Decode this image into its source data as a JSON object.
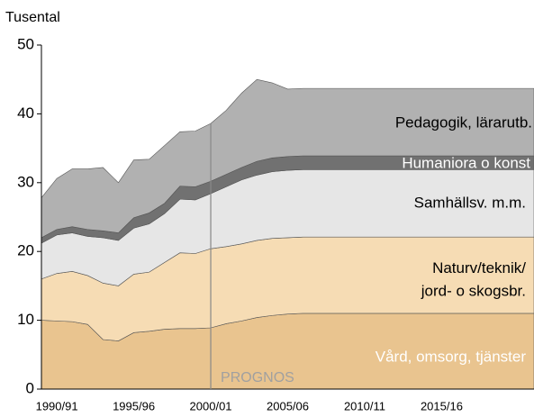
{
  "chart_data": {
    "type": "stacked_area",
    "y_axis_label": "Tusental",
    "categories": [
      null,
      "1990/91",
      null,
      null,
      null,
      null,
      "1995/96",
      null,
      null,
      null,
      null,
      "2000/01",
      null,
      null,
      null,
      null,
      "2005/06",
      null,
      null,
      null,
      null,
      "2010/11",
      null,
      null,
      null,
      null,
      "2015/16",
      null,
      null,
      null,
      null,
      null,
      null
    ],
    "series": [
      {
        "name": "Vård, omsorg, tjänster",
        "color": "#e9c48f",
        "values": [
          10.0,
          9.9,
          9.8,
          9.4,
          7.2,
          7.0,
          8.2,
          8.4,
          8.7,
          8.8,
          8.8,
          8.9,
          9.5,
          9.9,
          10.4,
          10.7,
          10.9,
          11.0,
          11.0,
          11.0,
          11.0,
          11.0,
          11.0,
          11.0,
          11.0,
          11.0,
          11.0,
          11.0,
          11.0,
          11.0,
          11.0,
          11.0,
          11.0
        ]
      },
      {
        "name": "Naturv/teknik/\njord- o skogsbr.",
        "color": "#f6dcb4",
        "values": [
          6.0,
          6.9,
          7.3,
          7.1,
          8.2,
          8.0,
          8.5,
          8.6,
          9.7,
          11.0,
          10.9,
          11.5,
          11.2,
          11.2,
          11.2,
          11.2,
          11.1,
          11.1,
          11.1,
          11.1,
          11.1,
          11.1,
          11.1,
          11.1,
          11.1,
          11.1,
          11.1,
          11.1,
          11.1,
          11.1,
          11.1,
          11.1,
          11.1
        ]
      },
      {
        "name": "Samhällsv. m.m.",
        "color": "#e6e6e6",
        "values": [
          5.2,
          5.6,
          5.6,
          5.7,
          6.6,
          6.6,
          6.7,
          7.0,
          7.1,
          7.8,
          7.8,
          8.0,
          8.7,
          9.3,
          9.5,
          9.7,
          9.8,
          9.8,
          9.8,
          9.8,
          9.8,
          9.8,
          9.8,
          9.8,
          9.8,
          9.8,
          9.8,
          9.8,
          9.8,
          9.8,
          9.8,
          9.8,
          9.8
        ]
      },
      {
        "name": "Humaniora o konst",
        "color": "#717171",
        "values": [
          0.8,
          0.8,
          0.9,
          1.0,
          1.0,
          1.1,
          1.5,
          1.6,
          1.5,
          1.9,
          1.9,
          1.8,
          1.8,
          1.8,
          2.0,
          2.0,
          2.0,
          2.0,
          2.0,
          2.0,
          2.0,
          2.0,
          2.0,
          2.0,
          2.0,
          2.0,
          2.0,
          2.0,
          2.0,
          2.0,
          2.0,
          2.0,
          2.0
        ]
      },
      {
        "name": "Pedagogik, lärarutb.",
        "color": "#b1b1b1",
        "values": [
          5.8,
          7.4,
          8.4,
          8.8,
          9.2,
          7.3,
          8.4,
          7.8,
          8.4,
          7.9,
          8.1,
          8.4,
          9.3,
          10.8,
          11.9,
          10.9,
          9.8,
          9.8,
          9.8,
          9.8,
          9.8,
          9.8,
          9.8,
          9.8,
          9.8,
          9.8,
          9.8,
          9.8,
          9.8,
          9.8,
          9.8,
          9.8,
          9.8
        ]
      }
    ],
    "ylim": [
      0,
      50
    ],
    "yticks": [
      0,
      10,
      20,
      30,
      40,
      50
    ],
    "annotations": [
      {
        "text": "PROGNOS",
        "x": "2000/01"
      }
    ]
  }
}
